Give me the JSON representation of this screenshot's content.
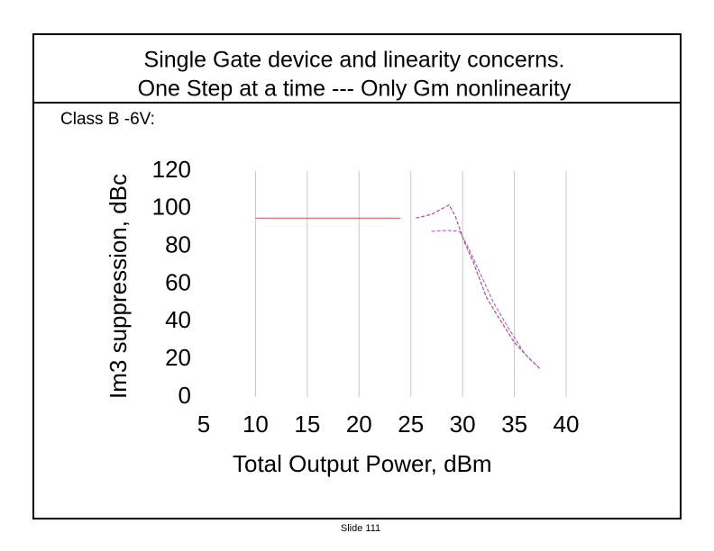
{
  "slide": {
    "title_lines": [
      "Single Gate device and linearity concerns.",
      "One Step at a time --- Only Gm nonlinearity"
    ],
    "subtitle": "Class B -6V:",
    "footer": "Slide 111"
  },
  "chart_data": {
    "type": "line",
    "xlabel": "Total Output Power, dBm",
    "ylabel": "Im3 suppression, dBc",
    "xlim": [
      5,
      40
    ],
    "xticks": [
      5,
      10,
      15,
      20,
      25,
      30,
      35,
      40
    ],
    "ylim": [
      0,
      120
    ],
    "yticks": [
      0,
      20,
      40,
      60,
      80,
      100,
      120
    ],
    "grid": true,
    "series": [
      {
        "color": "#d06868",
        "dash": false,
        "x": [
          10,
          24
        ],
        "values": [
          95,
          95
        ]
      },
      {
        "color": "#c040a0",
        "dash": true,
        "x": [
          25.5,
          27,
          28,
          28.7,
          29.3,
          30.2,
          31,
          32.3,
          33.5,
          35,
          36.5,
          37.5
        ],
        "values": [
          95,
          97,
          100,
          102,
          96,
          82,
          72,
          53,
          42,
          29,
          20,
          15
        ]
      },
      {
        "color": "#a070c0",
        "dash": true,
        "x": [
          27,
          28.5,
          29.7,
          30.5,
          31.5,
          33,
          34.5,
          36,
          37.3
        ],
        "values": [
          88,
          88.5,
          88,
          80,
          68,
          50,
          36,
          23,
          16
        ]
      }
    ]
  }
}
